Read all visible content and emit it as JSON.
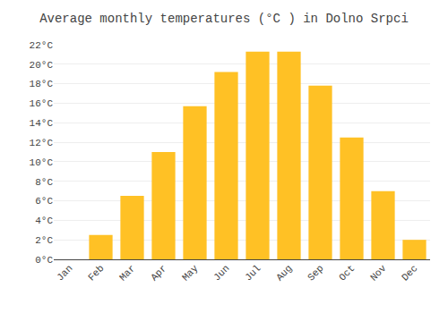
{
  "chart_data": {
    "type": "bar",
    "title": "Average monthly temperatures (°C ) in Dolno Srpci",
    "categories": [
      "Jan",
      "Feb",
      "Mar",
      "Apr",
      "May",
      "Jun",
      "Jul",
      "Aug",
      "Sep",
      "Oct",
      "Nov",
      "Dec"
    ],
    "values": [
      0,
      2.5,
      6.5,
      11.0,
      15.7,
      19.2,
      21.3,
      21.3,
      17.8,
      12.5,
      7.0,
      2.0
    ],
    "color": "#FFC125",
    "ylim": [
      0,
      22
    ],
    "yticks": [
      {
        "value": 0,
        "label": "0°C"
      },
      {
        "value": 2,
        "label": "2°C"
      },
      {
        "value": 4,
        "label": "4°C"
      },
      {
        "value": 6,
        "label": "6°C"
      },
      {
        "value": 8,
        "label": "8°C"
      },
      {
        "value": 10,
        "label": "10°C"
      },
      {
        "value": 12,
        "label": "12°C"
      },
      {
        "value": 14,
        "label": "14°C"
      },
      {
        "value": 16,
        "label": "16°C"
      },
      {
        "value": 18,
        "label": "18°C"
      },
      {
        "value": 20,
        "label": "20°C"
      },
      {
        "value": 22,
        "label": "22°C"
      }
    ],
    "grid": true
  }
}
